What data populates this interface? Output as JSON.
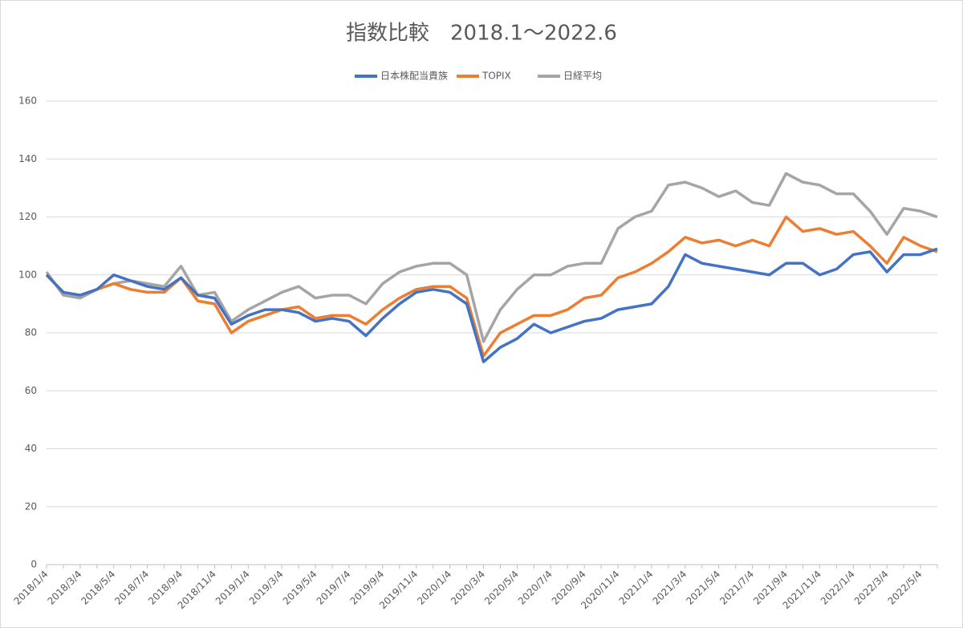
{
  "chart_data": {
    "type": "line",
    "title": "指数比較　2018.1～2022.6",
    "categories": [
      "2018/1/4",
      null,
      "2018/3/4",
      null,
      "2018/5/4",
      null,
      "2018/7/4",
      null,
      "2018/9/4",
      null,
      "2018/11/4",
      null,
      "2019/1/4",
      null,
      "2019/3/4",
      null,
      "2019/5/4",
      null,
      "2019/7/4",
      null,
      "2019/9/4",
      null,
      "2019/11/4",
      null,
      "2020/1/4",
      null,
      "2020/3/4",
      null,
      "2020/5/4",
      null,
      "2020/7/4",
      null,
      "2020/9/4",
      null,
      "2020/11/4",
      null,
      "2021/1/4",
      null,
      "2021/3/4",
      null,
      "2021/5/4",
      null,
      "2021/7/4",
      null,
      "2021/9/4",
      null,
      "2021/11/4",
      null,
      "2022/1/4",
      null,
      "2022/3/4",
      null,
      "2022/5/4",
      null
    ],
    "series": [
      {
        "name": "日本株配当貴族",
        "color": "#4472c4",
        "values": [
          100,
          94,
          93,
          95,
          100,
          98,
          96,
          95,
          99,
          93,
          92,
          83,
          86,
          88,
          88,
          87,
          84,
          85,
          84,
          79,
          85,
          90,
          94,
          95,
          94,
          90,
          70,
          75,
          78,
          83,
          80,
          82,
          84,
          85,
          88,
          89,
          90,
          96,
          107,
          104,
          103,
          102,
          101,
          100,
          104,
          104,
          100,
          102,
          107,
          108,
          101,
          107,
          107,
          109
        ]
      },
      {
        "name": "TOPIX",
        "color": "#ed7d31",
        "values": [
          100,
          94,
          93,
          95,
          97,
          95,
          94,
          94,
          99,
          91,
          90,
          80,
          84,
          86,
          88,
          89,
          85,
          86,
          86,
          83,
          88,
          92,
          95,
          96,
          96,
          92,
          72,
          80,
          83,
          86,
          86,
          88,
          92,
          93,
          99,
          101,
          104,
          108,
          113,
          111,
          112,
          110,
          112,
          110,
          120,
          115,
          116,
          114,
          115,
          110,
          104,
          113,
          110,
          108
        ]
      },
      {
        "name": "日経平均",
        "color": "#a5a5a5",
        "values": [
          101,
          93,
          92,
          95,
          97,
          98,
          97,
          96,
          103,
          93,
          94,
          84,
          88,
          91,
          94,
          96,
          92,
          93,
          93,
          90,
          97,
          101,
          103,
          104,
          104,
          100,
          77,
          88,
          95,
          100,
          100,
          103,
          104,
          104,
          116,
          120,
          122,
          131,
          132,
          130,
          127,
          129,
          125,
          124,
          135,
          132,
          131,
          128,
          128,
          122,
          114,
          123,
          122,
          120
        ]
      }
    ],
    "ylim": [
      0,
      160
    ],
    "yticks": [
      0,
      20,
      40,
      60,
      80,
      100,
      120,
      140,
      160
    ],
    "grid": true,
    "legend": "top"
  }
}
